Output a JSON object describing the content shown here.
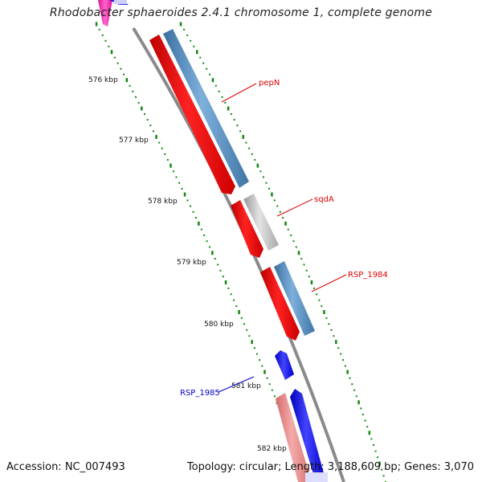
{
  "title": "Rhodobacter sphaeroides 2.4.1 chromosome 1, complete genome",
  "footer": {
    "accession": "Accession: NC_007493",
    "topology": "Topology: circular; Length: 3,188,609 bp; Genes: 3,070"
  },
  "ticks": [
    {
      "label": "576 kbp",
      "position_kbp": 576
    },
    {
      "label": "577 kbp",
      "position_kbp": 577
    },
    {
      "label": "578 kbp",
      "position_kbp": 578
    },
    {
      "label": "579 kbp",
      "position_kbp": 579
    },
    {
      "label": "580 kbp",
      "position_kbp": 580
    },
    {
      "label": "581 kbp",
      "position_kbp": 581
    },
    {
      "label": "582 kbp",
      "position_kbp": 582
    }
  ],
  "genes": [
    {
      "name": "pepN",
      "label_color": "#dd0000"
    },
    {
      "name": "sqdA",
      "label_color": "#dd0000"
    },
    {
      "name": "RSP_1984",
      "label_color": "#dd0000"
    },
    {
      "name": "RSP_1985",
      "label_color": "#0000cc"
    }
  ],
  "colors": {
    "backbone": "#888888",
    "forward_cds": "#ee0000",
    "forward_cds_light": "#ee8888",
    "other_strand": "#4682b4",
    "hypothetical": "#bbbbbb",
    "blue_cds": "#0000ee",
    "pink_cds": "#ee22aa",
    "tick_dots": "#118811"
  }
}
